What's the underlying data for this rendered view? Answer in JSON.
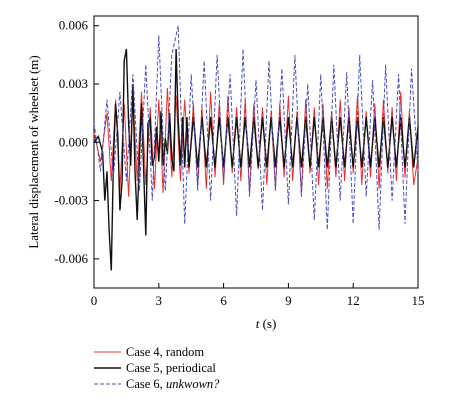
{
  "chart_data": {
    "type": "line",
    "xlabel_var": "t",
    "xlabel_unit": " (s)",
    "ylabel": "Lateral displacement of wheelset (m)",
    "xlim": [
      0,
      15
    ],
    "ylim": [
      -0.0075,
      0.0065
    ],
    "xticks": [
      "0",
      "3",
      "6",
      "9",
      "12",
      "15"
    ],
    "yticks": [
      "-0.006",
      "-0.003",
      "0.000",
      "0.003",
      "0.006"
    ],
    "grid": false,
    "legend_position": "bottom-left, below plot",
    "series": [
      {
        "name": "Case 4, random",
        "color": "#e8312a",
        "dash": "solid",
        "x": [
          0,
          0.3,
          0.6,
          0.8,
          1.0,
          1.2,
          1.4,
          1.6,
          1.8,
          2.0,
          2.2,
          2.4,
          2.6,
          2.8,
          3.0,
          3.2,
          3.4,
          3.6,
          3.8,
          4.0,
          4.2,
          4.4,
          4.6,
          4.8,
          5.0,
          5.2,
          5.4,
          5.6,
          5.8,
          6.0,
          6.2,
          6.4,
          6.6,
          6.8,
          7.0,
          7.2,
          7.4,
          7.6,
          7.8,
          8.0,
          8.2,
          8.4,
          8.6,
          8.8,
          9.0,
          9.2,
          9.4,
          9.6,
          9.8,
          10.0,
          10.2,
          10.4,
          10.6,
          10.8,
          11.0,
          11.2,
          11.4,
          11.6,
          11.8,
          12.0,
          12.2,
          12.4,
          12.6,
          12.8,
          13.0,
          13.2,
          13.4,
          13.6,
          13.8,
          14.0,
          14.2,
          14.4,
          14.6,
          14.8,
          15.0
        ],
        "values": [
          0.0005,
          -0.001,
          0.0015,
          -0.002,
          0.0022,
          -0.0025,
          0.002,
          -0.0028,
          0.0025,
          -0.002,
          0.0026,
          -0.0022,
          0.0018,
          -0.0024,
          0.0022,
          -0.0026,
          0.0028,
          -0.0018,
          0.0024,
          -0.002,
          0.0022,
          -0.0016,
          0.002,
          -0.0022,
          0.0018,
          -0.0024,
          0.0026,
          -0.0018,
          0.002,
          -0.0022,
          0.0024,
          -0.0016,
          0.0018,
          -0.002,
          0.0022,
          -0.0026,
          0.002,
          -0.0014,
          0.0018,
          -0.0022,
          0.0016,
          -0.0024,
          0.002,
          -0.0018,
          0.0024,
          -0.002,
          0.0016,
          -0.0026,
          0.0022,
          -0.0016,
          0.0018,
          -0.0022,
          0.002,
          -0.0024,
          0.0016,
          -0.0018,
          0.0022,
          -0.002,
          0.0018,
          -0.0016,
          0.0024,
          -0.0022,
          0.0016,
          -0.0018,
          0.002,
          -0.0024,
          0.0022,
          -0.0016,
          0.0018,
          -0.002,
          0.0026,
          -0.0018,
          0.0016,
          -0.0022,
          -0.0008
        ]
      },
      {
        "name": "Case 5, periodical",
        "color": "#111111",
        "dash": "solid",
        "x": [
          0,
          0.2,
          0.4,
          0.5,
          0.6,
          0.7,
          0.8,
          0.9,
          1.0,
          1.1,
          1.2,
          1.3,
          1.4,
          1.5,
          1.6,
          1.7,
          1.8,
          1.9,
          2.0,
          2.1,
          2.2,
          2.3,
          2.4,
          2.5,
          2.6,
          2.7,
          2.8,
          2.9,
          3.0,
          3.1,
          3.2,
          3.3,
          3.4,
          3.5,
          3.6,
          3.7,
          3.8,
          3.9,
          4.0,
          4.1,
          4.2,
          4.3,
          4.4,
          4.6,
          4.8,
          5.0,
          5.2,
          5.4,
          5.6,
          5.8,
          6.0,
          6.2,
          6.4,
          6.6,
          6.8,
          7.0,
          7.2,
          7.4,
          7.6,
          7.8,
          8.0,
          8.2,
          8.4,
          8.6,
          8.8,
          9.0,
          9.2,
          9.4,
          9.6,
          9.8,
          10.0,
          10.2,
          10.4,
          10.6,
          10.8,
          11.0,
          11.2,
          11.4,
          11.6,
          11.8,
          12.0,
          12.2,
          12.4,
          12.6,
          12.8,
          13.0,
          13.2,
          13.4,
          13.6,
          13.8,
          14.0,
          14.2,
          14.4,
          14.6,
          14.8,
          15.0
        ],
        "values": [
          0,
          0.0003,
          -0.0005,
          -0.003,
          -0.0015,
          -0.0045,
          -0.0066,
          -0.001,
          0.002,
          0.0004,
          -0.0035,
          -0.002,
          0.0042,
          0.0048,
          0.001,
          -0.0012,
          0.003,
          -0.0015,
          -0.004,
          -0.0008,
          0.002,
          -0.0015,
          -0.0048,
          0.001,
          0.0012,
          -0.0012,
          -0.0008,
          0.0008,
          -0.001,
          0.0016,
          -0.0012,
          0.0002,
          -0.0006,
          0.0015,
          -0.0008,
          -0.0015,
          0.0048,
          0.0012,
          -0.0012,
          0.0013,
          -0.0013,
          0.0013,
          -0.0013,
          0.0013,
          -0.0013,
          0.0013,
          -0.0013,
          0.0013,
          -0.0013,
          0.0013,
          -0.0013,
          0.0013,
          -0.0013,
          0.0013,
          -0.0013,
          0.0013,
          -0.0013,
          0.0013,
          -0.0013,
          0.0013,
          -0.0013,
          0.0013,
          -0.0013,
          0.0013,
          -0.0013,
          0.0013,
          -0.0013,
          0.0013,
          -0.0013,
          0.0013,
          -0.0013,
          0.0013,
          -0.0013,
          0.0013,
          -0.0013,
          0.0013,
          -0.0013,
          0.0013,
          -0.0013,
          0.0013,
          -0.0013,
          0.0013,
          -0.0013,
          0.0013,
          -0.0013,
          0.0013,
          -0.0013,
          0.0013,
          -0.0013,
          0.0013,
          -0.0013,
          0.0013,
          -0.0013,
          0.0013,
          -0.0013,
          0.0008
        ]
      },
      {
        "name": "Case 6, ",
        "name_italic": "unkwown?",
        "color": "#4a4fbf",
        "dash": "dashed",
        "x": [
          0,
          0.3,
          0.6,
          0.9,
          1.2,
          1.5,
          1.8,
          2.1,
          2.4,
          2.7,
          3.0,
          3.3,
          3.6,
          3.9,
          4.2,
          4.5,
          4.8,
          5.1,
          5.4,
          5.7,
          6.0,
          6.3,
          6.6,
          6.9,
          7.2,
          7.5,
          7.8,
          8.1,
          8.4,
          8.7,
          9.0,
          9.3,
          9.6,
          9.9,
          10.2,
          10.5,
          10.8,
          11.1,
          11.4,
          11.7,
          12.0,
          12.3,
          12.6,
          12.9,
          13.2,
          13.5,
          13.8,
          14.1,
          14.4,
          14.7,
          15.0
        ],
        "values": [
          0.001,
          -0.0015,
          0.0022,
          -0.0018,
          0.0026,
          -0.002,
          0.0035,
          -0.0025,
          0.004,
          -0.003,
          0.0055,
          -0.0025,
          0.0045,
          0.006,
          -0.0042,
          0.0035,
          -0.0025,
          0.0042,
          -0.003,
          0.0045,
          -0.002,
          0.0035,
          -0.0038,
          0.0048,
          -0.0028,
          0.0032,
          -0.0035,
          0.0042,
          -0.0025,
          0.0038,
          -0.0032,
          0.0045,
          -0.0028,
          0.003,
          -0.004,
          0.0035,
          -0.0045,
          0.004,
          -0.003,
          0.0036,
          -0.0042,
          0.0045,
          -0.0028,
          0.0032,
          -0.0045,
          0.004,
          -0.003,
          0.0035,
          -0.0042,
          0.0038,
          -0.0015
        ]
      }
    ]
  }
}
